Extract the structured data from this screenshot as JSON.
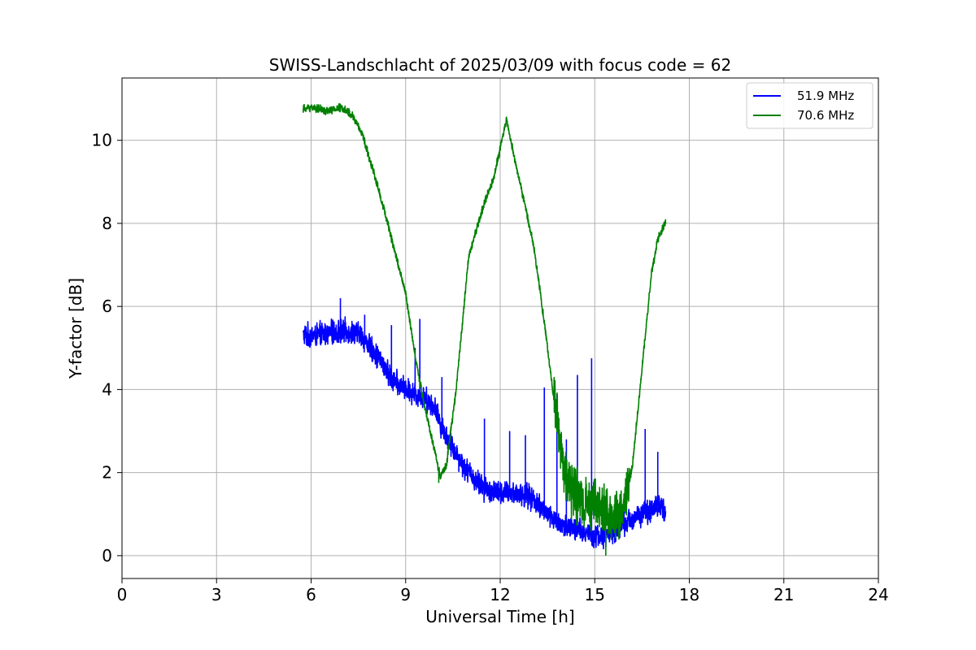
{
  "chart_data": {
    "type": "line",
    "title": "SWISS-Landschlacht of 2025/03/09 with focus code = 62",
    "xlabel": "Universal Time [h]",
    "ylabel": "Y-factor [dB]",
    "xlim": [
      0,
      24
    ],
    "ylim": [
      -0.55,
      11.5
    ],
    "xticks": [
      0,
      3,
      6,
      9,
      12,
      15,
      18,
      21,
      24
    ],
    "yticks": [
      0,
      2,
      4,
      6,
      8,
      10
    ],
    "grid": true,
    "legend_position": "top-right",
    "series": [
      {
        "name": "51.9 MHz",
        "color": "#0000ff",
        "noise": 0.35,
        "x": [
          5.75,
          6.0,
          6.5,
          7.0,
          7.3,
          7.6,
          7.9,
          8.2,
          8.5,
          8.8,
          9.0,
          9.3,
          9.6,
          9.9,
          10.2,
          10.5,
          10.8,
          11.0,
          11.5,
          12.0,
          12.5,
          13.0,
          13.5,
          14.0,
          14.5,
          15.0,
          15.3,
          15.6,
          16.0,
          16.5,
          17.0,
          17.25
        ],
        "y": [
          5.3,
          5.3,
          5.35,
          5.4,
          5.4,
          5.3,
          5.0,
          4.7,
          4.3,
          4.1,
          4.0,
          3.9,
          3.8,
          3.6,
          3.0,
          2.6,
          2.2,
          2.0,
          1.6,
          1.5,
          1.5,
          1.4,
          1.0,
          0.7,
          0.6,
          0.5,
          0.45,
          0.6,
          0.8,
          1.0,
          1.2,
          1.1
        ],
        "spikes": [
          [
            6.93,
            6.2
          ],
          [
            7.7,
            5.8
          ],
          [
            8.55,
            5.55
          ],
          [
            9.45,
            5.7
          ],
          [
            9.3,
            5.0
          ],
          [
            10.15,
            4.3
          ],
          [
            11.5,
            3.3
          ],
          [
            12.3,
            3.0
          ],
          [
            12.8,
            2.9
          ],
          [
            13.4,
            4.05
          ],
          [
            13.8,
            3.9
          ],
          [
            14.1,
            2.8
          ],
          [
            14.9,
            4.75
          ],
          [
            14.45,
            4.35
          ],
          [
            16.6,
            3.05
          ],
          [
            17.0,
            2.5
          ]
        ]
      },
      {
        "name": "70.6 MHz",
        "color": "#008000",
        "noise": 0.12,
        "x": [
          5.75,
          6.0,
          6.5,
          7.0,
          7.3,
          7.6,
          8.0,
          8.5,
          9.0,
          9.3,
          9.6,
          9.9,
          10.1,
          10.3,
          10.6,
          11.0,
          11.5,
          11.8,
          12.0,
          12.2,
          12.5,
          12.8,
          13.1,
          13.4,
          13.7,
          14.0,
          14.3,
          14.6,
          15.0,
          15.3,
          15.6,
          15.9,
          16.2,
          16.5,
          16.8,
          17.0,
          17.25
        ],
        "y": [
          10.75,
          10.8,
          10.7,
          10.8,
          10.6,
          10.2,
          9.2,
          7.8,
          6.3,
          4.8,
          3.6,
          2.6,
          1.9,
          2.2,
          4.0,
          7.2,
          8.5,
          9.1,
          9.8,
          10.5,
          9.4,
          8.4,
          7.3,
          5.6,
          3.8,
          2.2,
          1.5,
          1.3,
          1.2,
          1.1,
          0.9,
          1.1,
          2.2,
          4.5,
          6.8,
          7.6,
          8.05
        ],
        "band_region": [
          13.7,
          16.1
        ],
        "band_noise": 0.75,
        "spikes": [
          [
            12.2,
            10.55
          ],
          [
            15.35,
            0.0
          ],
          [
            15.8,
            0.5
          ],
          [
            10.05,
            1.75
          ]
        ]
      }
    ]
  }
}
